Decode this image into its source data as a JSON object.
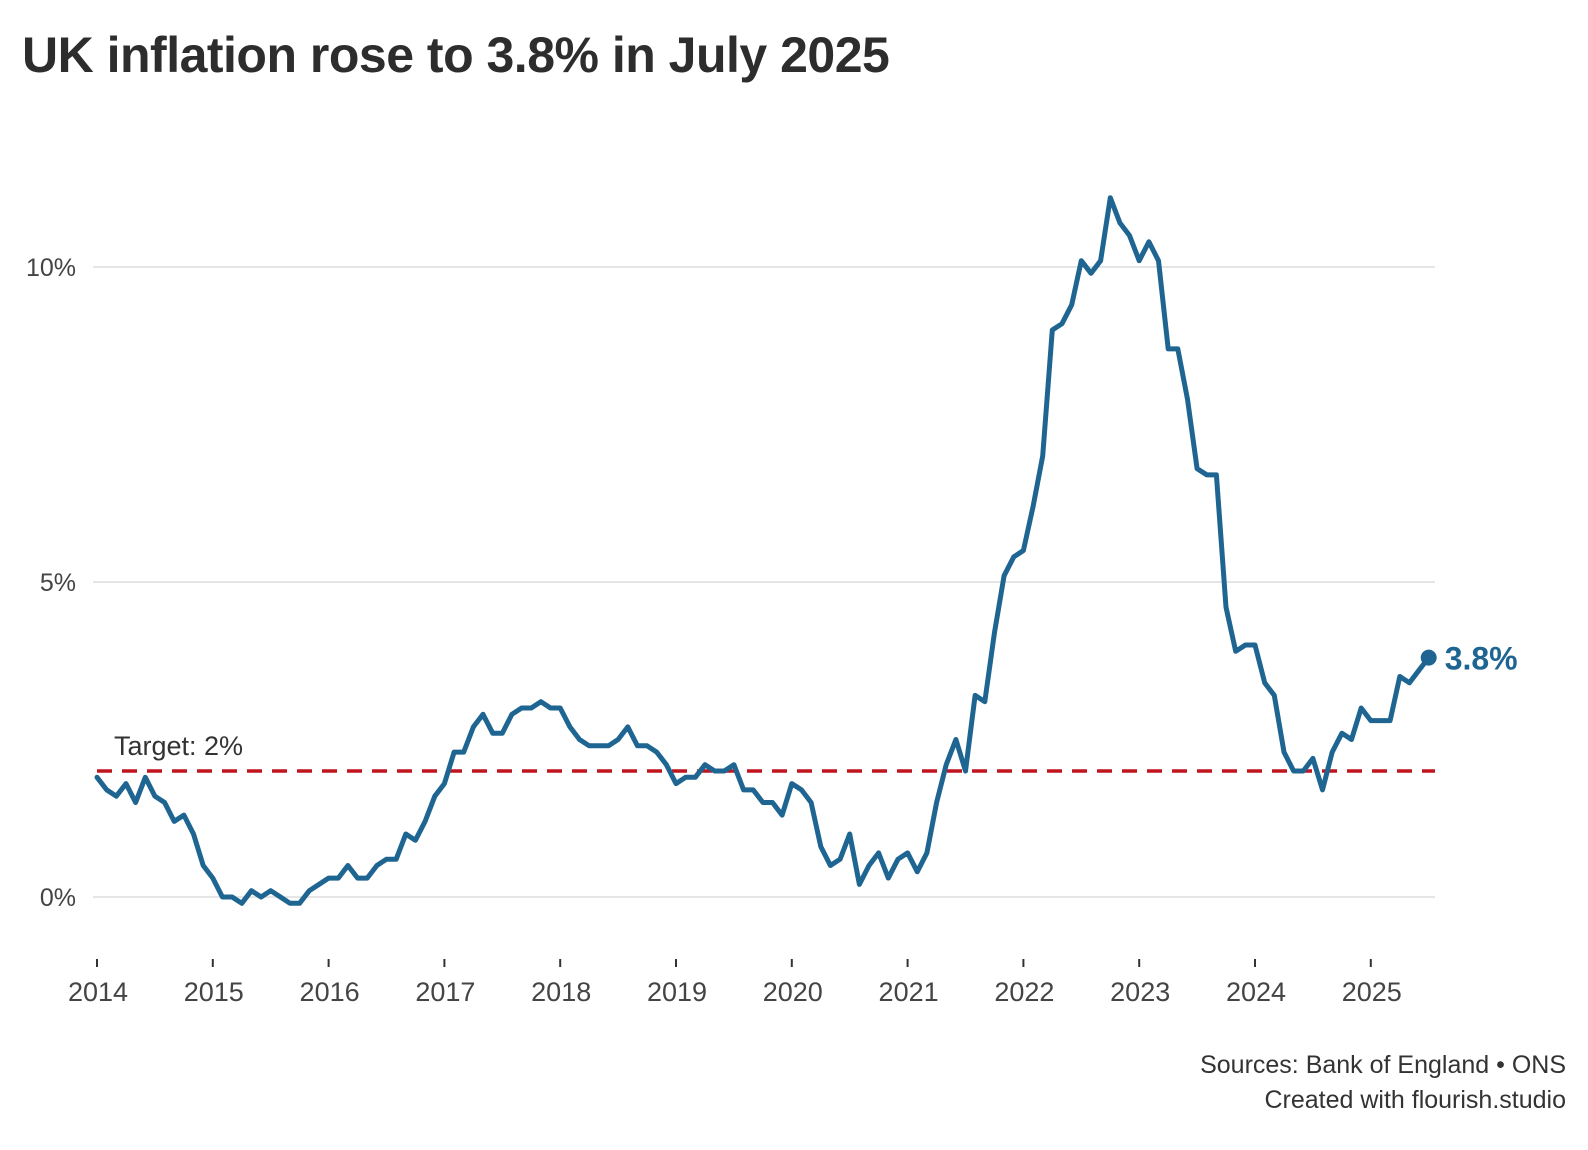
{
  "title": "UK inflation rose to 3.8% in July 2025",
  "footer": {
    "sources": "Sources: Bank of England • ONS",
    "credit": "Created with flourish.studio"
  },
  "chart_data": {
    "type": "line",
    "title": "UK inflation rose to 3.8% in July 2025",
    "xlabel": "",
    "ylabel": "",
    "x_start": "2014-01",
    "x_end": "2025-07",
    "x_ticks": [
      "2014",
      "2015",
      "2016",
      "2017",
      "2018",
      "2019",
      "2020",
      "2021",
      "2022",
      "2023",
      "2024",
      "2025"
    ],
    "y_ticks": [
      {
        "value": 0,
        "label": "0%"
      },
      {
        "value": 5,
        "label": "5%"
      },
      {
        "value": 10,
        "label": "10%"
      }
    ],
    "ylim": [
      -1,
      12
    ],
    "grid": true,
    "colors": {
      "series": "#1f6592",
      "target": "#c0141e",
      "grid": "#e5e5e5"
    },
    "target": {
      "value": 2,
      "label": "Target: 2%"
    },
    "end_label": "3.8%",
    "series": [
      {
        "values": [
          1.9,
          1.7,
          1.6,
          1.8,
          1.5,
          1.9,
          1.6,
          1.5,
          1.2,
          1.3,
          1.0,
          0.5,
          0.3,
          0.0,
          0.0,
          -0.1,
          0.1,
          0.0,
          0.1,
          0.0,
          -0.1,
          -0.1,
          0.1,
          0.2,
          0.3,
          0.3,
          0.5,
          0.3,
          0.3,
          0.5,
          0.6,
          0.6,
          1.0,
          0.9,
          1.2,
          1.6,
          1.8,
          2.3,
          2.3,
          2.7,
          2.9,
          2.6,
          2.6,
          2.9,
          3.0,
          3.0,
          3.1,
          3.0,
          3.0,
          2.7,
          2.5,
          2.4,
          2.4,
          2.4,
          2.5,
          2.7,
          2.4,
          2.4,
          2.3,
          2.1,
          1.8,
          1.9,
          1.9,
          2.1,
          2.0,
          2.0,
          2.1,
          1.7,
          1.7,
          1.5,
          1.5,
          1.3,
          1.8,
          1.7,
          1.5,
          0.8,
          0.5,
          0.6,
          1.0,
          0.2,
          0.5,
          0.7,
          0.3,
          0.6,
          0.7,
          0.4,
          0.7,
          1.5,
          2.1,
          2.5,
          2.0,
          3.2,
          3.1,
          4.2,
          5.1,
          5.4,
          5.5,
          6.2,
          7.0,
          9.0,
          9.1,
          9.4,
          10.1,
          9.9,
          10.1,
          11.1,
          10.7,
          10.5,
          10.1,
          10.4,
          10.1,
          8.7,
          8.7,
          7.9,
          6.8,
          6.7,
          6.7,
          4.6,
          3.9,
          4.0,
          4.0,
          3.4,
          3.2,
          2.3,
          2.0,
          2.0,
          2.2,
          1.7,
          2.3,
          2.6,
          2.5,
          3.0,
          2.8,
          2.8,
          2.8,
          3.5,
          3.4,
          3.6,
          3.8
        ]
      }
    ]
  }
}
